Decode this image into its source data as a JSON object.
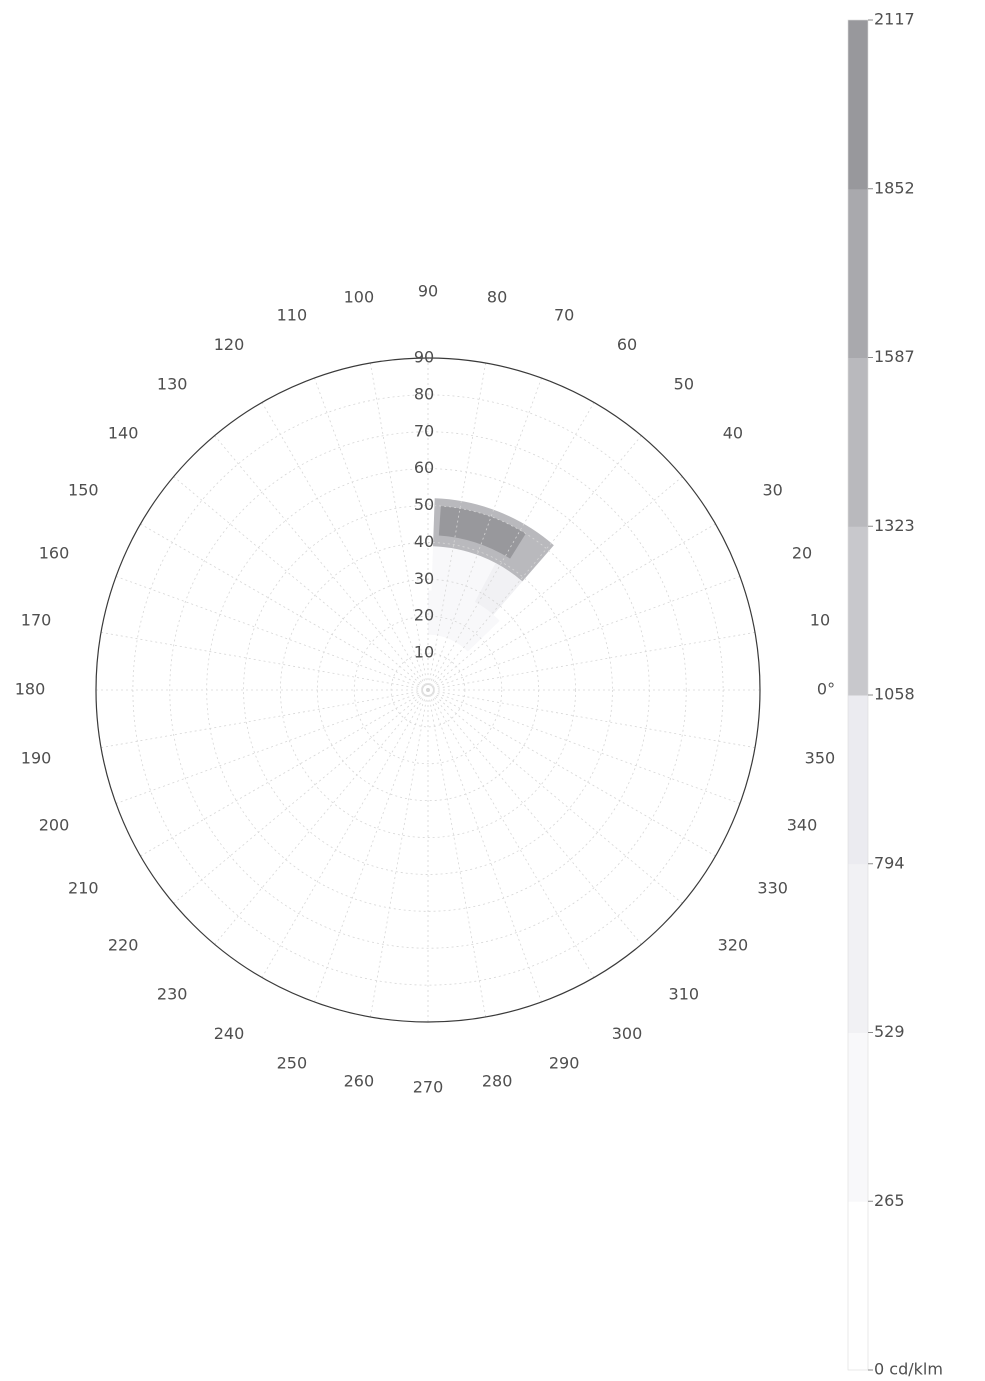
{
  "chart_data": {
    "type": "heatmap",
    "projection": "polar",
    "title": "",
    "angular_axis": {
      "unit": "°",
      "labels": [
        "0°",
        "10",
        "20",
        "30",
        "40",
        "50",
        "60",
        "70",
        "80",
        "90",
        "100",
        "110",
        "120",
        "130",
        "140",
        "150",
        "160",
        "170",
        "180",
        "190",
        "200",
        "210",
        "220",
        "230",
        "240",
        "250",
        "260",
        "270",
        "280",
        "290",
        "300",
        "310",
        "320",
        "330",
        "340",
        "350"
      ],
      "range": [
        0,
        360
      ],
      "direction": "counterclockwise",
      "zero_position": "right"
    },
    "radial_axis": {
      "labels": [
        "10",
        "20",
        "30",
        "40",
        "50",
        "60",
        "70",
        "80",
        "90"
      ],
      "range": [
        0,
        90
      ]
    },
    "grid": true,
    "colorbar": {
      "placement": "right",
      "ticks": [
        "0 cd/klm",
        "265",
        "529",
        "794",
        "1058",
        "1323",
        "1587",
        "1852",
        "2117"
      ],
      "range": [
        0,
        2117
      ],
      "unit": "cd/klm",
      "colors": [
        "#ffffff",
        "#f8f8fa",
        "#f1f1f4",
        "#ebebf0",
        "#c8c8cc",
        "#b9b9bd",
        "#a9a9ad",
        "#98989c"
      ]
    },
    "series": [
      {
        "angle_range": [
          49,
          62
        ],
        "radius_range": [
          27,
          39
        ],
        "value": 700
      },
      {
        "angle_range": [
          62,
          88
        ],
        "radius_range": [
          25,
          44
        ],
        "value": 500
      },
      {
        "angle_range": [
          49,
          88
        ],
        "radius_range": [
          39,
          52
        ],
        "value": 1400
      },
      {
        "angle_range": [
          58,
          86
        ],
        "radius_range": [
          42,
          50
        ],
        "value": 1900
      },
      {
        "angle_range": [
          44,
          90
        ],
        "radius_range": [
          15,
          27
        ],
        "value": 300
      },
      {
        "angle_range": [
          0,
          360
        ],
        "radius_range": [
          0,
          8
        ],
        "value": 120
      }
    ]
  }
}
